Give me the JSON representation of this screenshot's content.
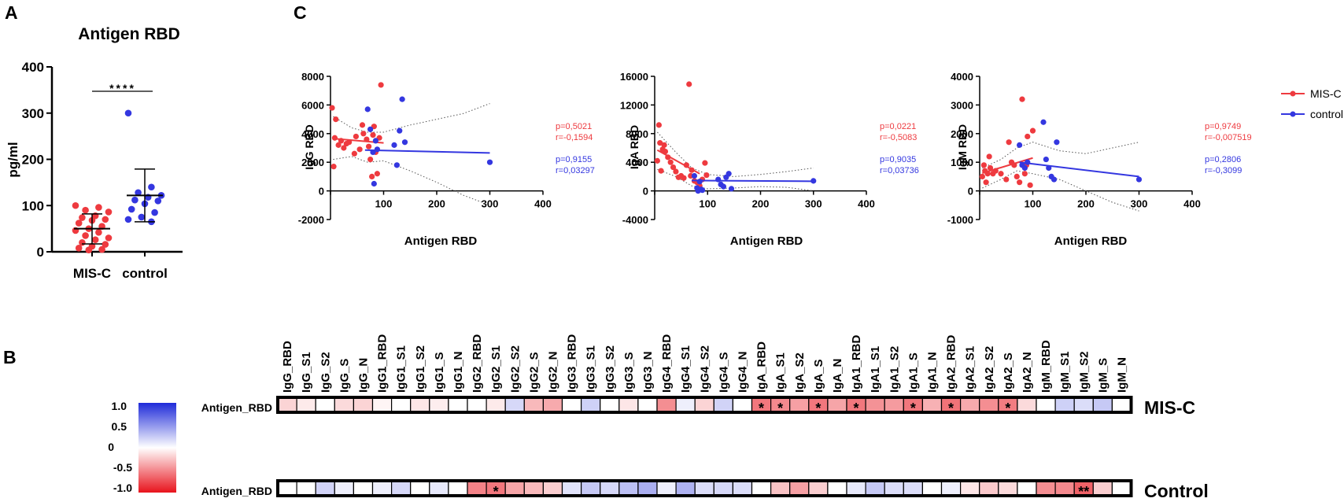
{
  "panel_labels": {
    "a": "A",
    "b": "B",
    "c": "C"
  },
  "colors": {
    "misc": "#ee3a3f",
    "control": "#3437e0",
    "black": "#000000",
    "ci": "#555555"
  },
  "chart_data": [
    {
      "id": "panel-a",
      "type": "scatter",
      "title": "Antigen RBD",
      "ylabel": "pg/ml",
      "xlabel": "",
      "categories": [
        "MIS-C",
        "control"
      ],
      "ylim": [
        0,
        400
      ],
      "yticks": [
        0,
        100,
        200,
        300,
        400
      ],
      "significance": "****",
      "summary": [
        {
          "group": "MIS-C",
          "median": 50,
          "low": 17,
          "high": 82
        },
        {
          "group": "control",
          "median": 122,
          "low": 65,
          "high": 179
        }
      ],
      "series": [
        {
          "name": "MIS-C",
          "color": "#ee3a3f",
          "values": [
            100,
            96,
            90,
            86,
            78,
            74,
            70,
            68,
            62,
            55,
            50,
            46,
            42,
            35,
            30,
            26,
            20,
            16,
            12,
            8,
            5,
            4
          ]
        },
        {
          "name": "control",
          "color": "#3437e0",
          "values": [
            300,
            140,
            128,
            122,
            118,
            112,
            110,
            104,
            92,
            85,
            75,
            70,
            65
          ]
        }
      ]
    },
    {
      "id": "panel-c1",
      "type": "scatter",
      "xlabel": "Antigen RBD",
      "ylabel": "IgG RBD",
      "xlim": [
        0,
        400
      ],
      "ylim": [
        -2000,
        8000
      ],
      "xticks": [
        0,
        100,
        200,
        300,
        400
      ],
      "yticks": [
        -2000,
        0,
        2000,
        4000,
        6000,
        8000
      ],
      "stats": [
        {
          "name": "MIS-C",
          "p": "p=0,5021",
          "r": "r=-0,1594"
        },
        {
          "name": "control",
          "p": "p=0,9155",
          "r": "r=0,03297"
        }
      ],
      "series": [
        {
          "name": "MIS-C",
          "fit": [
            [
              5,
              3650
            ],
            [
              100,
              3350
            ]
          ],
          "x": [
            3,
            6,
            8,
            10,
            15,
            20,
            25,
            30,
            35,
            45,
            48,
            55,
            60,
            62,
            68,
            72,
            75,
            78,
            80,
            82,
            85,
            88,
            92,
            95
          ],
          "y": [
            5800,
            1700,
            3700,
            5000,
            3200,
            3500,
            3000,
            3300,
            3400,
            2600,
            3800,
            2900,
            4600,
            4000,
            3600,
            3100,
            2200,
            1000,
            3900,
            4500,
            2700,
            1200,
            3700,
            7400
          ]
        },
        {
          "name": "control",
          "fit": [
            [
              65,
              2850
            ],
            [
              300,
              2650
            ]
          ],
          "x": [
            70,
            75,
            80,
            82,
            85,
            88,
            120,
            125,
            130,
            135,
            140,
            300
          ],
          "y": [
            5700,
            4300,
            2700,
            500,
            3500,
            2900,
            3200,
            1800,
            4200,
            6400,
            3400,
            2000
          ]
        }
      ],
      "ci": {
        "upper": [
          [
            5,
            5200
          ],
          [
            40,
            4400
          ],
          [
            70,
            4100
          ],
          [
            100,
            4100
          ],
          [
            150,
            4600
          ],
          [
            200,
            5000
          ],
          [
            250,
            5400
          ],
          [
            300,
            6100
          ]
        ],
        "lower": [
          [
            5,
            2200
          ],
          [
            40,
            2400
          ],
          [
            70,
            2000
          ],
          [
            100,
            2100
          ],
          [
            150,
            1400
          ],
          [
            200,
            600
          ],
          [
            250,
            -300
          ],
          [
            300,
            -1000
          ]
        ]
      }
    },
    {
      "id": "panel-c2",
      "type": "scatter",
      "xlabel": "Antigen RBD",
      "ylabel": "IgA RBD",
      "xlim": [
        0,
        400
      ],
      "ylim": [
        -4000,
        16000
      ],
      "xticks": [
        0,
        100,
        200,
        300,
        400
      ],
      "yticks": [
        -4000,
        0,
        4000,
        8000,
        12000,
        16000
      ],
      "stats": [
        {
          "name": "MIS-C",
          "p": "p=0,0221",
          "r": "r=-0,5083"
        },
        {
          "name": "control",
          "p": "p=0,9035",
          "r": "r=0,03736"
        }
      ],
      "series": [
        {
          "name": "MIS-C",
          "fit": [
            [
              5,
              5700
            ],
            [
              85,
              2400
            ]
          ],
          "x": [
            5,
            8,
            10,
            12,
            15,
            18,
            20,
            25,
            30,
            35,
            40,
            45,
            50,
            55,
            60,
            65,
            68,
            70,
            75,
            80,
            85,
            90,
            95,
            98
          ],
          "y": [
            4200,
            9200,
            6700,
            2800,
            5800,
            6400,
            5500,
            4700,
            4000,
            3300,
            2700,
            1900,
            2100,
            1800,
            3600,
            14900,
            2100,
            2900,
            1400,
            1200,
            700,
            1600,
            3900,
            2200
          ]
        },
        {
          "name": "control",
          "fit": [
            [
              70,
              1450
            ],
            [
              300,
              1350
            ]
          ],
          "x": [
            75,
            80,
            82,
            85,
            88,
            90,
            120,
            125,
            130,
            135,
            140,
            145,
            300
          ],
          "y": [
            2100,
            400,
            0,
            1300,
            200,
            100,
            1600,
            900,
            600,
            1900,
            2400,
            300,
            1400
          ]
        }
      ],
      "ci": {
        "upper": [
          [
            5,
            8200
          ],
          [
            40,
            5400
          ],
          [
            70,
            3200
          ],
          [
            100,
            2300
          ],
          [
            150,
            2000
          ],
          [
            200,
            2300
          ],
          [
            250,
            2700
          ],
          [
            300,
            3200
          ]
        ],
        "lower": [
          [
            5,
            3000
          ],
          [
            40,
            2000
          ],
          [
            70,
            700
          ],
          [
            100,
            300
          ],
          [
            150,
            400
          ],
          [
            200,
            600
          ],
          [
            250,
            500
          ],
          [
            300,
            0
          ]
        ]
      }
    },
    {
      "id": "panel-c3",
      "type": "scatter",
      "xlabel": "Antigen RBD",
      "ylabel": "IgM RBD",
      "xlim": [
        0,
        400
      ],
      "ylim": [
        -1000,
        4000
      ],
      "xticks": [
        0,
        100,
        200,
        300,
        400
      ],
      "yticks": [
        -1000,
        0,
        1000,
        2000,
        3000,
        4000
      ],
      "stats": [
        {
          "name": "MIS-C",
          "p": "p=0,9749",
          "r": "r=-0,007519"
        },
        {
          "name": "control",
          "p": "p=0,2806",
          "r": "r=-0,3099"
        }
      ],
      "series": [
        {
          "name": "MIS-C",
          "fit": [
            [
              5,
              620
            ],
            [
              100,
              1150
            ]
          ],
          "x": [
            5,
            8,
            10,
            12,
            15,
            18,
            20,
            25,
            30,
            40,
            50,
            55,
            60,
            65,
            70,
            75,
            80,
            85,
            88,
            90,
            95,
            100
          ],
          "y": [
            500,
            900,
            700,
            300,
            600,
            1200,
            800,
            600,
            700,
            600,
            400,
            1700,
            1000,
            900,
            500,
            300,
            3200,
            600,
            900,
            1900,
            200,
            2100
          ]
        },
        {
          "name": "control",
          "fit": [
            [
              75,
              1000
            ],
            [
              300,
              500
            ]
          ],
          "x": [
            75,
            80,
            85,
            90,
            120,
            125,
            130,
            135,
            140,
            145,
            300
          ],
          "y": [
            1600,
            900,
            800,
            1000,
            2400,
            1100,
            800,
            500,
            400,
            1700,
            400
          ]
        }
      ],
      "ci": {
        "upper": [
          [
            5,
            800
          ],
          [
            40,
            1100
          ],
          [
            70,
            1500
          ],
          [
            100,
            1700
          ],
          [
            150,
            1400
          ],
          [
            200,
            1300
          ],
          [
            250,
            1500
          ],
          [
            300,
            1700
          ]
        ],
        "lower": [
          [
            5,
            100
          ],
          [
            40,
            400
          ],
          [
            70,
            700
          ],
          [
            100,
            600
          ],
          [
            150,
            400
          ],
          [
            200,
            0
          ],
          [
            250,
            -400
          ],
          [
            300,
            -700
          ]
        ]
      }
    },
    {
      "id": "panel-b",
      "type": "heatmap",
      "columns": [
        "IgG_RBD",
        "IgG_S1",
        "IgG_S2",
        "IgG_S",
        "IgG_N",
        "IgG1_RBD",
        "IgG1_S1",
        "IgG1_S2",
        "IgG1_S",
        "IgG1_N",
        "IgG2_RBD",
        "IgG2_S1",
        "IgG2_S2",
        "IgG2_S",
        "IgG2_N",
        "IgG3_RBD",
        "IgG3_S1",
        "IgG3_S2",
        "IgG3_S",
        "IgG3_N",
        "IgG4_RBD",
        "IgG4_S1",
        "IgG4_S2",
        "IgG4_S",
        "IgG4_N",
        "IgA_RBD",
        "IgA_S1",
        "IgA_S2",
        "IgA_S",
        "IgA_N",
        "IgA1_RBD",
        "IgA1_S1",
        "IgA1_S2",
        "IgA1_S",
        "IgA1_N",
        "IgA2_RBD",
        "IgA2_S1",
        "IgA2_S2",
        "IgA2_S",
        "IgA2_N",
        "IgM_RBD",
        "IgM_S1",
        "IgM_S2",
        "IgM_S",
        "IgM_N"
      ],
      "rows": [
        {
          "row_label": "Antigen_RBD",
          "group": "MIS-C",
          "values": [
            -0.12,
            -0.05,
            0.0,
            -0.1,
            -0.12,
            -0.02,
            0.0,
            -0.06,
            -0.04,
            0.0,
            0.0,
            -0.05,
            0.12,
            -0.22,
            -0.28,
            0.0,
            0.15,
            0.0,
            -0.06,
            0.0,
            -0.4,
            0.04,
            -0.12,
            0.14,
            0.0,
            -0.5,
            -0.42,
            -0.32,
            -0.5,
            -0.3,
            -0.5,
            -0.38,
            -0.34,
            -0.5,
            -0.25,
            -0.52,
            -0.28,
            -0.4,
            -0.48,
            -0.1,
            0.0,
            0.15,
            0.1,
            0.18,
            0.0
          ],
          "stars": [
            "",
            "",
            "",
            "",
            "",
            "",
            "",
            "",
            "",
            "",
            "",
            "",
            "",
            "",
            "",
            "",
            "",
            "",
            "",
            "",
            "",
            "",
            "",
            "",
            "",
            "*",
            "*",
            "",
            "*",
            "",
            "*",
            "",
            "",
            "*",
            "",
            "*",
            "",
            "",
            "*",
            "",
            "",
            "",
            "",
            "",
            ""
          ]
        },
        {
          "row_label": "Antigen_RBD",
          "group": "Control",
          "values": [
            0.0,
            0.0,
            0.14,
            0.04,
            0.0,
            0.04,
            0.12,
            0.0,
            0.06,
            0.0,
            -0.45,
            -0.5,
            -0.3,
            -0.22,
            -0.14,
            0.08,
            0.18,
            0.12,
            0.22,
            0.3,
            0.04,
            0.28,
            0.1,
            0.12,
            0.1,
            0.0,
            -0.18,
            -0.32,
            -0.14,
            0.0,
            0.06,
            0.18,
            0.1,
            0.1,
            0.0,
            0.04,
            -0.06,
            -0.16,
            -0.1,
            0.0,
            -0.4,
            -0.42,
            -0.6,
            -0.14,
            0.0
          ],
          "stars": [
            "",
            "",
            "",
            "",
            "",
            "",
            "",
            "",
            "",
            "",
            "",
            "*",
            "",
            "",
            "",
            "",
            "",
            "",
            "",
            "",
            "",
            "",
            "",
            "",
            "",
            "",
            "",
            "",
            "",
            "",
            "",
            "",
            "",
            "",
            "",
            "",
            "",
            "",
            "",
            "",
            "",
            "",
            "**",
            "",
            ""
          ]
        }
      ],
      "colorbar": {
        "ticks": [
          "1.0",
          "0.5",
          "0",
          "-0.5",
          "-1.0"
        ],
        "max": 1,
        "min": -1
      }
    }
  ]
}
